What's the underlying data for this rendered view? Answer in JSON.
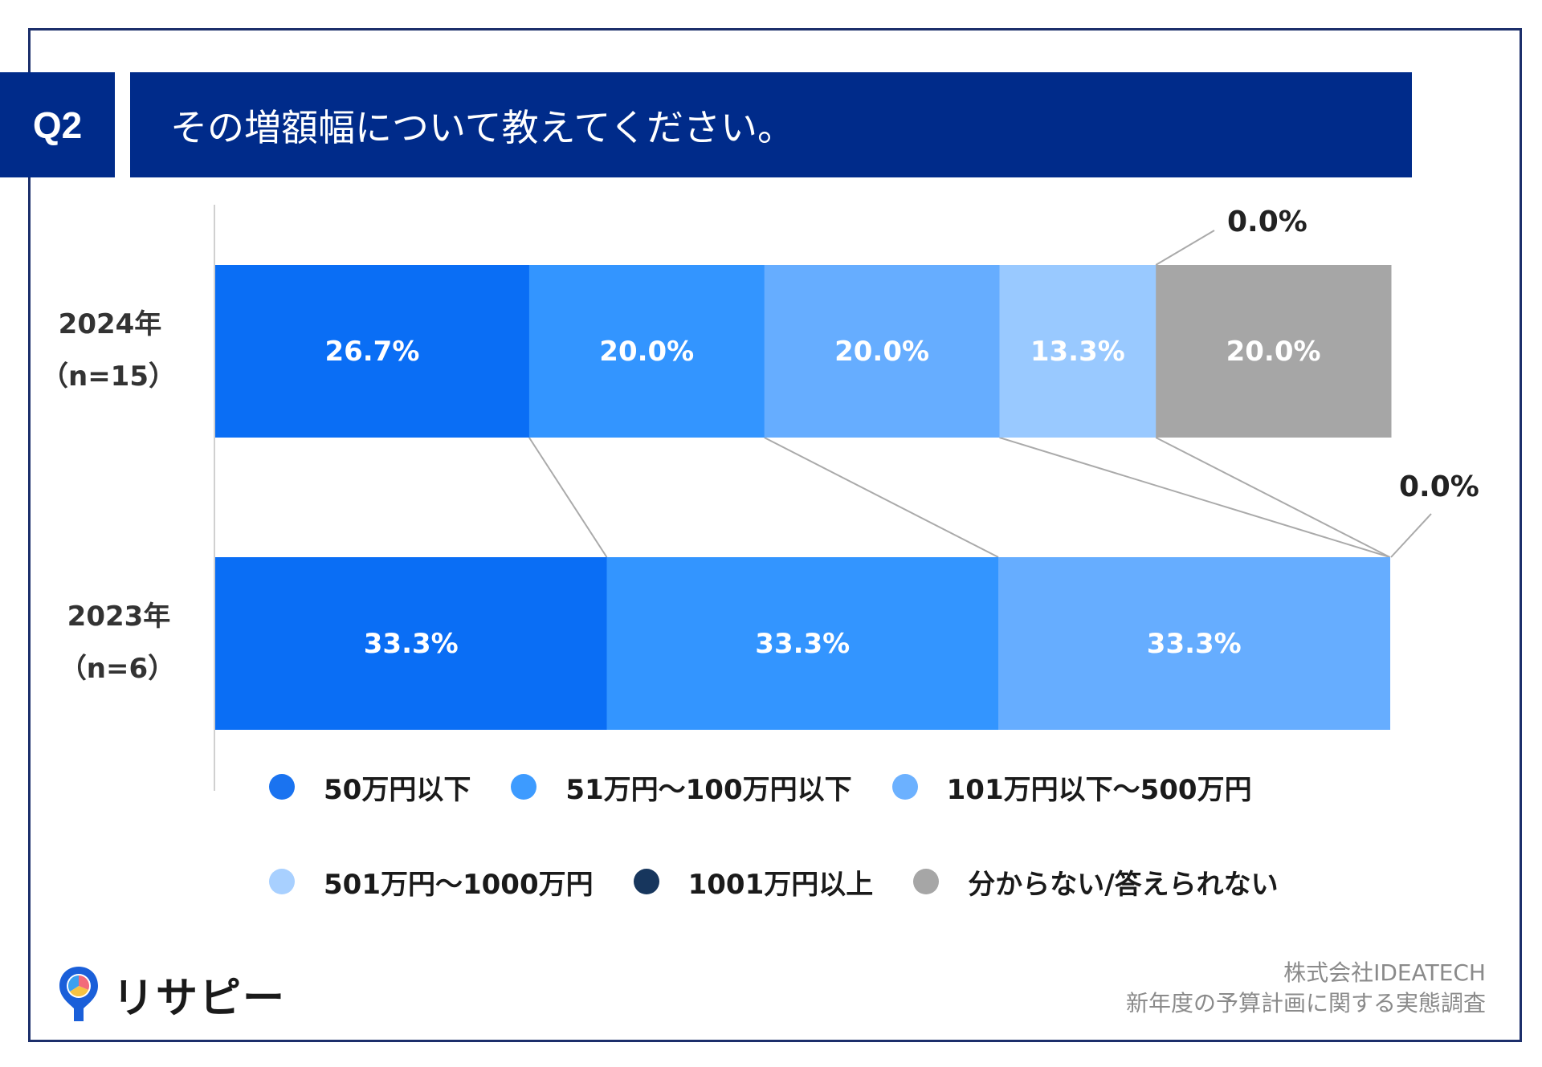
{
  "header": {
    "badge": "Q2",
    "question": "その増額幅について教えてください。"
  },
  "colors": {
    "header_bg": "#002b8a",
    "frame": "#1c2f6b",
    "connector": "#aaaaaa"
  },
  "chart_data": {
    "type": "stacked-bar-horizontal",
    "categories": [
      {
        "line1": "2024年",
        "line2": "（n=15）"
      },
      {
        "line1": "2023年",
        "line2": "（n=6）"
      }
    ],
    "series": [
      {
        "name": "50万円以下",
        "color": "#0a6ef5",
        "values": [
          26.7,
          33.3
        ],
        "labels": [
          "26.7%",
          "33.3%"
        ]
      },
      {
        "name": "51万円～100万円以下",
        "color": "#3395ff",
        "values": [
          20.0,
          33.3
        ],
        "labels": [
          "20.0%",
          "33.3%"
        ]
      },
      {
        "name": "101万円以下～500万円",
        "color": "#66adff",
        "values": [
          20.0,
          33.3
        ],
        "labels": [
          "20.0%",
          "33.3%"
        ]
      },
      {
        "name": "501万円～1000万円",
        "color": "#99c9ff",
        "values": [
          13.3,
          0.0
        ],
        "labels": [
          "13.3%",
          ""
        ]
      },
      {
        "name": "1001万円以上",
        "color": "#17365d",
        "values": [
          0.0,
          0.0
        ],
        "labels": [
          "",
          ""
        ]
      },
      {
        "name": "分からない/答えられない",
        "color": "#a6a6a6",
        "values": [
          20.0,
          0.0
        ],
        "labels": [
          "20.0%",
          ""
        ]
      }
    ],
    "annotations": {
      "top_zero": "0.0%",
      "bottom_zero": "0.0%"
    },
    "xlim": [
      0,
      100
    ]
  },
  "legend": {
    "row1": [
      {
        "label": "50万円以下",
        "color": "#1a73f0"
      },
      {
        "label": "51万円～100万円以下",
        "color": "#3d9bff"
      },
      {
        "label": "101万円以下～500万円",
        "color": "#6cb1ff"
      }
    ],
    "row2": [
      {
        "label": "501万円～1000万円",
        "color": "#a8d0ff"
      },
      {
        "label": "1001万円以上",
        "color": "#17365d"
      },
      {
        "label": "分からない/答えられない",
        "color": "#a6a6a6"
      }
    ]
  },
  "footer": {
    "logo_text": "リサピー",
    "source_line1": "株式会社IDEATECH",
    "source_line2": "新年度の予算計画に関する実態調査"
  }
}
